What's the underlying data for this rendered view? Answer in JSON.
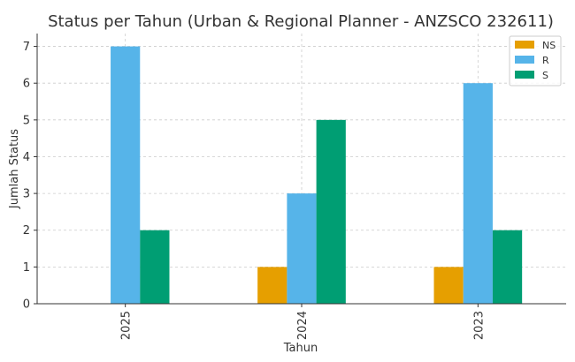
{
  "chart_data": {
    "type": "bar",
    "title": "Status per Tahun (Urban & Regional Planner - ANZSCO 232611)",
    "xlabel": "Tahun",
    "ylabel": "Jumlah Status",
    "categories": [
      "2025",
      "2024",
      "2023"
    ],
    "series": [
      {
        "name": "NS",
        "color": "#E69F00",
        "values": [
          0,
          1,
          1
        ]
      },
      {
        "name": "R",
        "color": "#56B4E9",
        "values": [
          7,
          3,
          6
        ]
      },
      {
        "name": "S",
        "color": "#009E73",
        "values": [
          2,
          5,
          2
        ]
      }
    ],
    "ylim": [
      0,
      7.35
    ],
    "yticks": [
      "0",
      "1",
      "2",
      "3",
      "4",
      "5",
      "6",
      "7"
    ],
    "grid": true,
    "legend_position": "top-right"
  }
}
